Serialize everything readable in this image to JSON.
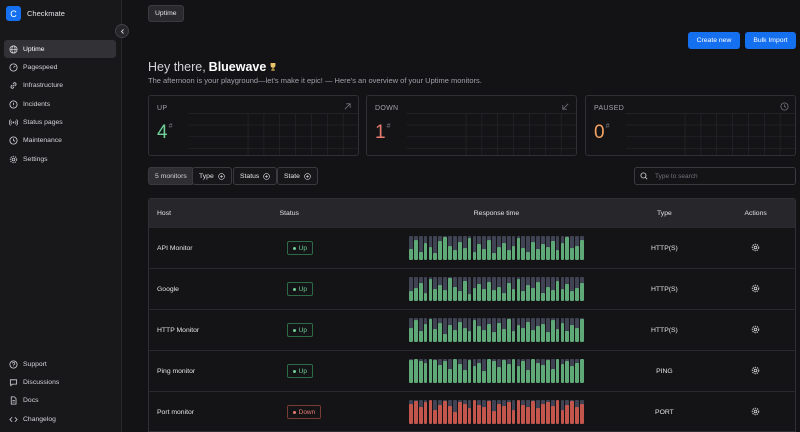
{
  "app": {
    "logo_letter": "C",
    "name": "Checkmate"
  },
  "sidebar": {
    "items": [
      {
        "label": "Uptime",
        "icon": "globe-icon",
        "active": true
      },
      {
        "label": "Pagespeed",
        "icon": "speedometer-icon"
      },
      {
        "label": "Infrastructure",
        "icon": "link-icon"
      },
      {
        "label": "Incidents",
        "icon": "alert-circle-icon"
      },
      {
        "label": "Status pages",
        "icon": "broadcast-icon"
      },
      {
        "label": "Maintenance",
        "icon": "clock-icon"
      },
      {
        "label": "Settings",
        "icon": "gear-icon"
      }
    ],
    "bottom_items": [
      {
        "label": "Support",
        "icon": "help-circle-icon"
      },
      {
        "label": "Discussions",
        "icon": "chat-icon"
      },
      {
        "label": "Docs",
        "icon": "document-icon"
      },
      {
        "label": "Changelog",
        "icon": "code-icon"
      }
    ]
  },
  "header": {
    "tab": "Uptime",
    "create_label": "Create new",
    "import_label": "Bulk Import"
  },
  "greeting": {
    "prefix": "Hey there,",
    "name": "Bluewave",
    "subtitle": "The afternoon is your playground—let's make it epic! — Here's an overview of your Uptime monitors."
  },
  "stats": [
    {
      "label": "UP",
      "value": "4",
      "color": "#6fcf97",
      "icon": "arrow-up-right-icon"
    },
    {
      "label": "DOWN",
      "value": "1",
      "color": "#e87c73",
      "icon": "arrow-down-left-icon"
    },
    {
      "label": "PAUSED",
      "value": "0",
      "color": "#f4a261",
      "icon": "clock-icon"
    }
  ],
  "filters": {
    "count": "5 monitors",
    "type": "Type",
    "status": "Status",
    "state": "State",
    "search_placeholder": "Type to search"
  },
  "table": {
    "headers": {
      "host": "Host",
      "status": "Status",
      "response": "Response time",
      "type": "Type",
      "actions": "Actions"
    },
    "rows": [
      {
        "host": "API Monitor",
        "status": "Up",
        "state": "up",
        "type": "HTTP(S)",
        "response": [
          0.45,
          0.85,
          0.35,
          0.7,
          0.55,
          0.3,
          0.8,
          0.95,
          0.6,
          0.4,
          0.75,
          0.5,
          0.9,
          0.35,
          0.65,
          0.45,
          0.85,
          0.3,
          0.55,
          0.7,
          0.4,
          0.6,
          0.9,
          0.5,
          0.35,
          0.75,
          0.45,
          0.65,
          0.55,
          0.8,
          0.4,
          0.7,
          0.95,
          0.5,
          0.6,
          0.85
        ]
      },
      {
        "host": "Google",
        "status": "Up",
        "state": "up",
        "type": "HTTP(S)",
        "response": [
          0.4,
          0.55,
          0.75,
          0.35,
          0.9,
          0.5,
          0.65,
          0.45,
          0.95,
          0.6,
          0.4,
          0.85,
          0.3,
          0.55,
          0.7,
          0.5,
          0.8,
          0.45,
          0.6,
          0.35,
          0.75,
          0.5,
          0.9,
          0.4,
          0.65,
          0.55,
          0.8,
          0.35,
          0.6,
          0.45,
          0.85,
          0.5,
          0.7,
          0.4,
          0.55,
          0.75
        ]
      },
      {
        "host": "HTTP Monitor",
        "status": "Up",
        "state": "up",
        "type": "HTTP(S)",
        "response": [
          0.6,
          0.9,
          0.45,
          0.75,
          0.95,
          0.55,
          0.8,
          0.35,
          0.7,
          0.5,
          0.85,
          0.6,
          0.45,
          0.9,
          0.65,
          0.5,
          0.75,
          0.4,
          0.8,
          0.55,
          0.95,
          0.45,
          0.7,
          0.6,
          0.85,
          0.5,
          0.65,
          0.75,
          0.4,
          0.9,
          0.55,
          0.8,
          0.45,
          0.7,
          0.6,
          0.95
        ]
      },
      {
        "host": "Ping monitor",
        "status": "Up",
        "state": "up",
        "type": "PING",
        "response": [
          0.95,
          1.0,
          0.9,
          0.85,
          1.0,
          0.95,
          0.75,
          0.9,
          0.6,
          1.0,
          0.8,
          0.55,
          0.95,
          0.7,
          0.85,
          0.5,
          1.0,
          0.9,
          0.65,
          0.95,
          0.8,
          1.0,
          0.7,
          0.9,
          0.55,
          1.0,
          0.85,
          0.75,
          0.95,
          0.6,
          1.0,
          0.8,
          0.9,
          0.7,
          0.85,
          1.0
        ]
      },
      {
        "host": "Port monitor",
        "status": "Down",
        "state": "down",
        "type": "PORT",
        "response": [
          0.85,
          0.95,
          0.7,
          0.9,
          1.0,
          0.6,
          0.8,
          0.95,
          0.75,
          0.5,
          0.9,
          0.85,
          0.65,
          1.0,
          0.8,
          0.7,
          0.95,
          0.55,
          0.85,
          0.75,
          0.9,
          0.6,
          1.0,
          0.8,
          0.7,
          0.95,
          0.65,
          0.85,
          0.9,
          0.75,
          1.0,
          0.6,
          0.8,
          0.95,
          0.7,
          0.85
        ]
      }
    ]
  },
  "colors": {
    "accent": "#1570ef",
    "up": "#6fcf97",
    "down": "#e87c73",
    "bar_up": "#5fa878",
    "bar_down": "#c2564d",
    "bar_bg": "#3f4354"
  }
}
